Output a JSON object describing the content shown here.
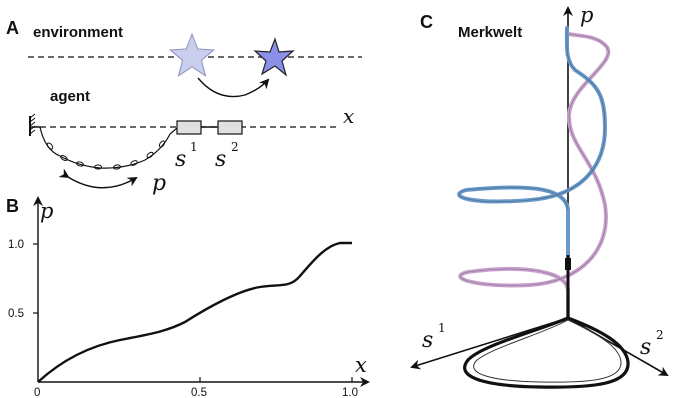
{
  "panelA": {
    "letter": "A",
    "environment_label": "environment",
    "agent_label": "agent",
    "x_label": "x",
    "s1_label": "s",
    "s1_sup": "1",
    "s2_label": "s",
    "s2_sup": "2",
    "p_label": "p"
  },
  "panelB": {
    "letter": "B",
    "y_label": "p",
    "x_label": "x",
    "y_ticks": [
      "1.0",
      "0.5"
    ],
    "x_ticks": [
      "0",
      "0.5",
      "1.0"
    ]
  },
  "panelC": {
    "letter": "C",
    "title": "Merkwelt",
    "p_label": "p",
    "s1_label": "s",
    "s1_sup": "1",
    "s2_label": "s",
    "s2_sup": "2"
  },
  "colors": {
    "star_light": "#c9cdee",
    "star_dark": "#8a8fe8",
    "helix_blue": "#6a9ac9",
    "helix_pink": "#c8a2cc",
    "sensor_box": "#e0e0e0"
  }
}
